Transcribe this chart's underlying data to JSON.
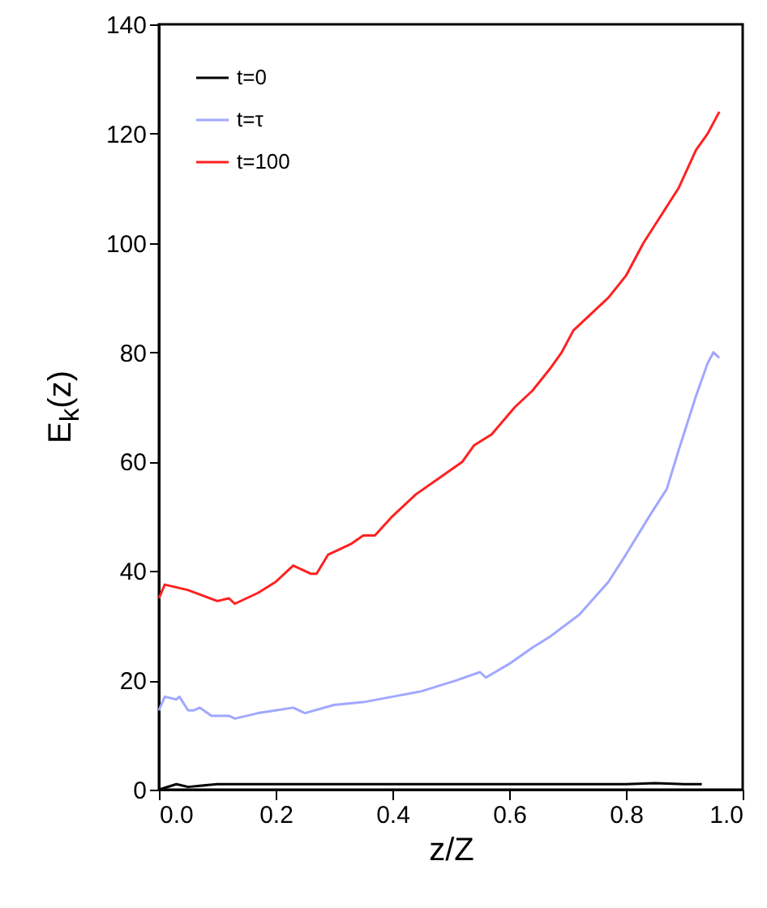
{
  "chart_data": {
    "type": "line",
    "xlabel": "z/Z",
    "ylabel": "E$_{k}$(z)",
    "xlim": [
      0,
      1
    ],
    "xticks": [
      {
        "value": 0,
        "label": "0.0"
      },
      {
        "value": 0.2,
        "label": "0.2"
      },
      {
        "value": 0.4,
        "label": "0.4"
      },
      {
        "value": 0.6,
        "label": "0.6"
      },
      {
        "value": 0.8,
        "label": "0.8"
      },
      {
        "value": 1,
        "label": "1.0"
      }
    ],
    "ylim": [
      0,
      140
    ],
    "yticks": [
      0,
      20,
      40,
      60,
      80,
      100,
      120,
      140
    ],
    "grid": false,
    "legend": "top left",
    "line_style": "solid",
    "marker": "none",
    "series": [
      {
        "name": "t=0",
        "color": "#000000",
        "x": [
          0,
          0.03,
          0.05,
          0.1,
          0.2,
          0.3,
          0.4,
          0.5,
          0.6,
          0.7,
          0.8,
          0.85,
          0.9,
          0.93
        ],
        "values": [
          0,
          1,
          0.5,
          1,
          1,
          1,
          1,
          1,
          1,
          1,
          1,
          1.2,
          1,
          1
        ]
      },
      {
        "name": "t=τ",
        "color": "#a0a8ff",
        "x": [
          0,
          0.01,
          0.03,
          0.035,
          0.05,
          0.06,
          0.07,
          0.09,
          0.12,
          0.13,
          0.17,
          0.2,
          0.23,
          0.25,
          0.3,
          0.35,
          0.4,
          0.45,
          0.51,
          0.55,
          0.56,
          0.6,
          0.64,
          0.67,
          0.72,
          0.77,
          0.8,
          0.84,
          0.87,
          0.89,
          0.92,
          0.94,
          0.95,
          0.96
        ],
        "values": [
          14.5,
          17,
          16.5,
          17,
          14.5,
          14.5,
          15,
          13.5,
          13.5,
          13,
          14,
          14.5,
          15,
          14,
          15.5,
          16,
          17,
          18,
          20,
          21.5,
          20.5,
          23,
          26,
          28,
          32,
          38,
          43,
          50,
          55,
          62,
          72,
          78,
          80,
          79
        ]
      },
      {
        "name": "t=100",
        "color": "#ff2020",
        "x": [
          0,
          0.01,
          0.05,
          0.1,
          0.12,
          0.13,
          0.17,
          0.2,
          0.23,
          0.26,
          0.27,
          0.29,
          0.33,
          0.35,
          0.37,
          0.4,
          0.44,
          0.48,
          0.52,
          0.54,
          0.57,
          0.61,
          0.64,
          0.67,
          0.69,
          0.71,
          0.74,
          0.77,
          0.8,
          0.83,
          0.86,
          0.89,
          0.92,
          0.94,
          0.96
        ],
        "values": [
          35,
          37.5,
          36.5,
          34.5,
          35,
          34,
          36,
          38,
          41,
          39.5,
          39.5,
          43,
          45,
          46.5,
          46.5,
          50,
          54,
          57,
          60,
          63,
          65,
          70,
          73,
          77,
          80,
          84,
          87,
          90,
          94,
          100,
          105,
          110,
          117,
          120,
          124
        ]
      }
    ]
  }
}
